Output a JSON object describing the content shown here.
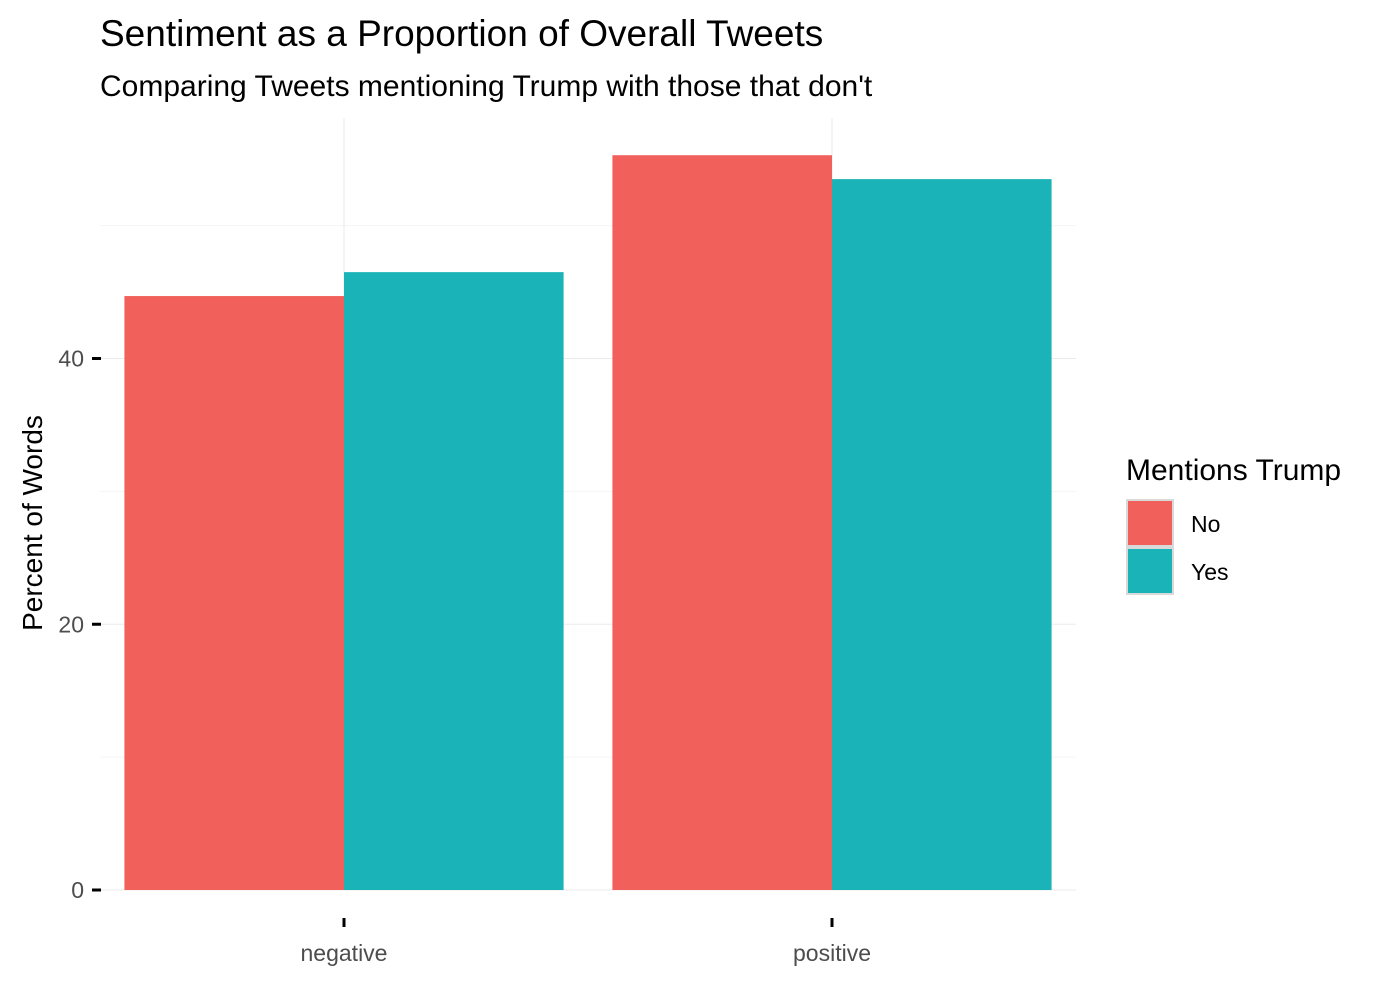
{
  "chart_data": {
    "type": "bar",
    "title": "Sentiment as a Proportion of Overall Tweets",
    "subtitle": "Comparing Tweets mentioning Trump with those that don't",
    "xlabel": "",
    "ylabel": "Percent of Words",
    "categories": [
      "negative",
      "positive"
    ],
    "series": [
      {
        "name": "No",
        "color": "#f2605c",
        "values": [
          44.7,
          55.3
        ]
      },
      {
        "name": "Yes",
        "color": "#1ab3b7",
        "values": [
          46.5,
          53.5
        ]
      }
    ],
    "ylim": [
      0,
      58.1
    ],
    "yticks": [
      0,
      20,
      40
    ],
    "yticks_minor": [
      10,
      30,
      50
    ],
    "grid": true,
    "legend": {
      "title": "Mentions Trump",
      "position": "right"
    }
  }
}
